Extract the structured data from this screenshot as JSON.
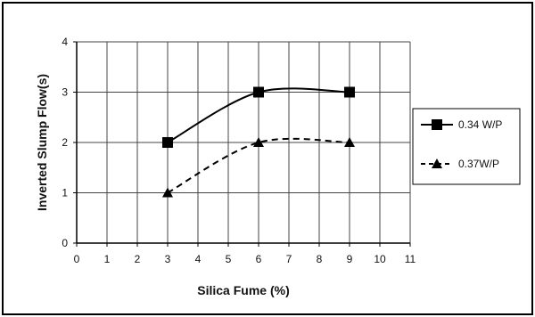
{
  "chart_data": {
    "type": "line",
    "title": "",
    "xlabel": "Silica Fume (%)",
    "ylabel": "Inverted Slump Flow(s)",
    "xlim": [
      0,
      11
    ],
    "ylim": [
      0,
      4
    ],
    "x_ticks": [
      "0",
      "1",
      "2",
      "3",
      "4",
      "5",
      "6",
      "7",
      "8",
      "9",
      "10",
      "11"
    ],
    "y_ticks": [
      "0",
      "1",
      "2",
      "3",
      "4"
    ],
    "grid": "vertical and horizontal",
    "legend_position": "right",
    "series": [
      {
        "name": "0.34 W/P",
        "x": [
          3,
          6,
          9
        ],
        "values": [
          2,
          3,
          3
        ],
        "marker": "square",
        "line": "solid",
        "color": "#000000"
      },
      {
        "name": "0.37W/P",
        "x": [
          3,
          6,
          9
        ],
        "values": [
          1,
          2,
          2
        ],
        "marker": "triangle",
        "line": "dashed",
        "color": "#000000"
      }
    ]
  }
}
